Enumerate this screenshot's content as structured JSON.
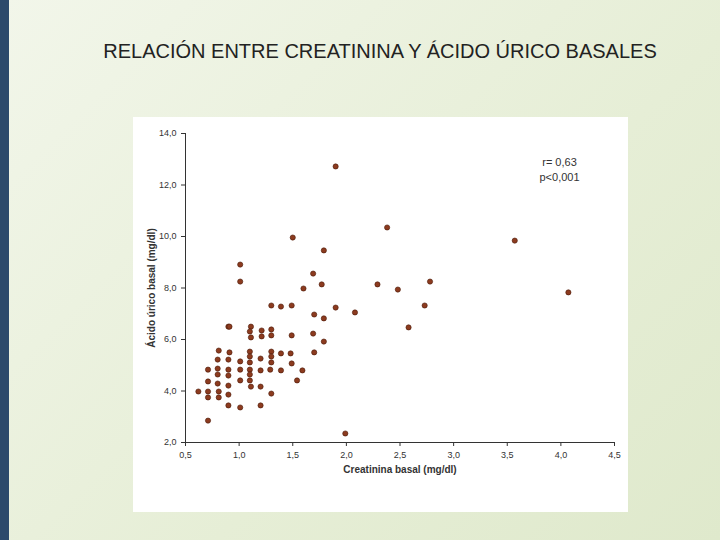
{
  "chart_data": {
    "type": "scatter",
    "title": "RELACIÓN ENTRE CREATININA Y ÁCIDO ÚRICO BASALES",
    "x_label": "Creatinina basal (mg/dl)",
    "y_label": "Ácido úrico basal (mg/dl)",
    "annotations": [
      "r= 0,63",
      "p<0,001"
    ],
    "color": "#8c3b1f",
    "marker": "circle",
    "xlim": [
      0.5,
      4.5
    ],
    "xticks": [
      {
        "value": 0.5,
        "label": "0,5"
      },
      {
        "value": 1.0,
        "label": "1,0"
      },
      {
        "value": 1.5,
        "label": "1,5"
      },
      {
        "value": 2.0,
        "label": "2,0"
      },
      {
        "value": 2.5,
        "label": "2,5"
      },
      {
        "value": 3.0,
        "label": "3,0"
      },
      {
        "value": 3.5,
        "label": "3,5"
      },
      {
        "value": 4.0,
        "label": "4,0"
      },
      {
        "value": 4.5,
        "label": "4,5"
      }
    ],
    "ylim": [
      2.0,
      14.0
    ],
    "yticks": [
      {
        "value": 2.0,
        "label": "2,0"
      },
      {
        "value": 4.0,
        "label": "4,0"
      },
      {
        "value": 6.0,
        "label": "6,0"
      },
      {
        "value": 8.0,
        "label": "8,0"
      },
      {
        "value": 10.0,
        "label": "10,0"
      },
      {
        "value": 12.0,
        "label": "12,0"
      },
      {
        "value": 14.0,
        "label": "14,0"
      }
    ],
    "x": [
      1.9,
      2.38,
      3.57,
      4.07,
      1.5,
      1.79,
      1.01,
      1.69,
      1.01,
      1.77,
      2.78,
      2.29,
      2.48,
      1.6,
      1.3,
      1.39,
      1.49,
      1.9,
      2.08,
      2.73,
      1.7,
      1.79,
      0.9,
      0.91,
      1.11,
      1.1,
      1.21,
      1.3,
      1.11,
      1.21,
      1.3,
      1.49,
      1.69,
      2.58,
      1.79,
      0.81,
      0.91,
      1.1,
      1.3,
      1.39,
      1.7,
      1.1,
      1.2,
      1.3,
      1.48,
      0.8,
      0.9,
      1.01,
      1.1,
      1.3,
      1.49,
      0.71,
      0.8,
      0.9,
      1.01,
      1.1,
      1.2,
      1.29,
      1.39,
      1.59,
      0.8,
      0.9,
      1.1,
      0.71,
      1.01,
      1.1,
      0.8,
      0.9,
      1.11,
      1.2,
      0.62,
      0.71,
      0.81,
      0.9,
      0.71,
      0.81,
      1.3,
      0.9,
      1.01,
      1.2,
      0.71,
      1.54,
      1.99
    ],
    "y": [
      12.72,
      10.35,
      9.84,
      7.83,
      9.96,
      9.46,
      8.91,
      8.56,
      8.25,
      8.14,
      8.25,
      8.14,
      7.94,
      7.98,
      7.32,
      7.28,
      7.32,
      7.24,
      7.05,
      7.32,
      6.97,
      6.82,
      6.5,
      6.5,
      6.5,
      6.31,
      6.35,
      6.39,
      6.08,
      6.12,
      6.16,
      6.16,
      6.23,
      6.47,
      5.92,
      5.57,
      5.5,
      5.53,
      5.53,
      5.46,
      5.5,
      5.34,
      5.26,
      5.34,
      5.46,
      5.22,
      5.22,
      5.15,
      5.11,
      5.11,
      5.07,
      4.83,
      4.87,
      4.83,
      4.83,
      4.83,
      4.8,
      4.83,
      4.8,
      4.8,
      4.64,
      4.6,
      4.64,
      4.37,
      4.41,
      4.41,
      4.29,
      4.21,
      4.17,
      4.17,
      3.98,
      3.98,
      3.98,
      3.86,
      3.75,
      3.75,
      3.9,
      3.44,
      3.36,
      3.44,
      2.85,
      4.41,
      2.35
    ]
  }
}
